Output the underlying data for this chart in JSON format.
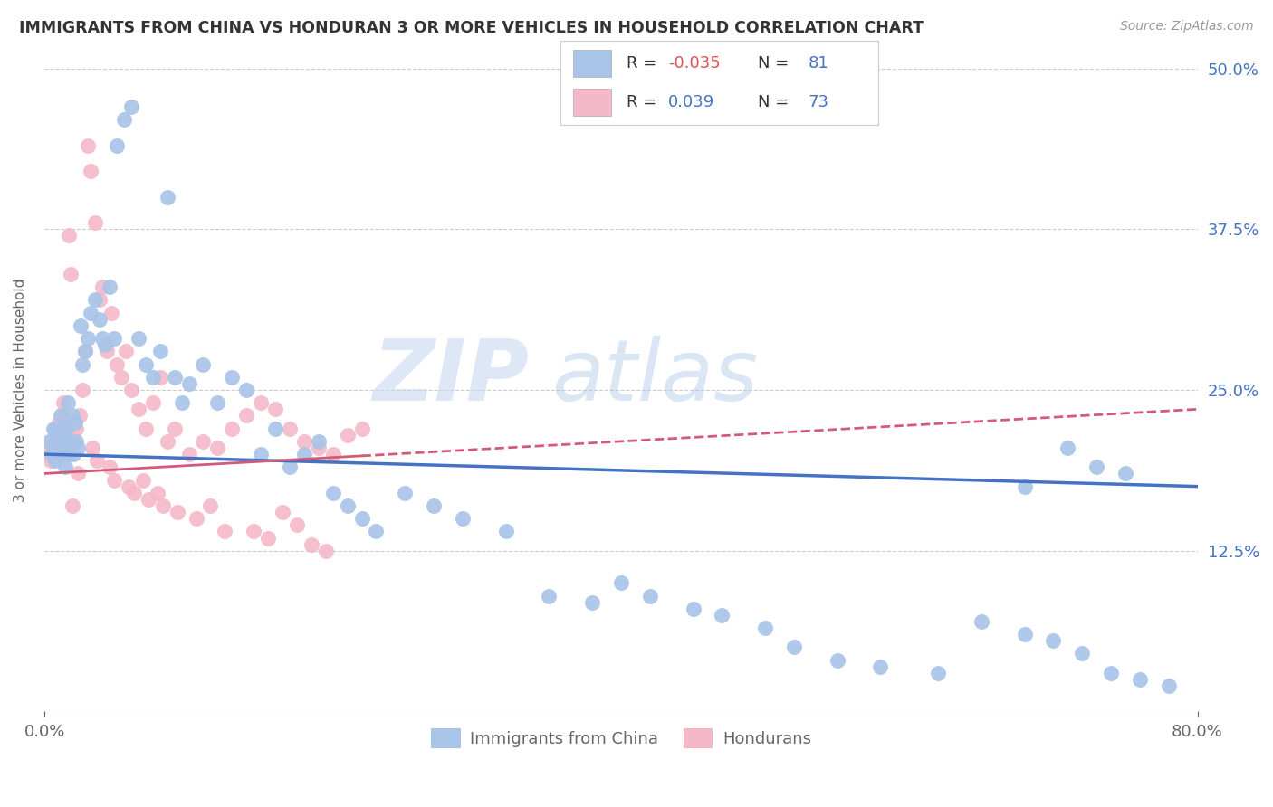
{
  "title": "IMMIGRANTS FROM CHINA VS HONDURAN 3 OR MORE VEHICLES IN HOUSEHOLD CORRELATION CHART",
  "source": "Source: ZipAtlas.com",
  "ylabel": "3 or more Vehicles in Household",
  "legend_china_R": "-0.035",
  "legend_china_N": "81",
  "legend_honduran_R": "0.039",
  "legend_honduran_N": "73",
  "color_china": "#a8c4e8",
  "color_honduran": "#f5b8c8",
  "color_china_line": "#4472c4",
  "color_honduran_line": "#d45a7a",
  "background_color": "#ffffff",
  "watermark_zip": "ZIP",
  "watermark_atlas": "atlas",
  "ytick_vals": [
    0,
    12.5,
    25.0,
    37.5,
    50.0
  ],
  "ytick_labels": [
    "",
    "12.5%",
    "25.0%",
    "37.5%",
    "50.0%"
  ],
  "china_x": [
    0.3,
    0.5,
    0.6,
    0.7,
    0.8,
    0.9,
    1.0,
    1.1,
    1.2,
    1.3,
    1.4,
    1.5,
    1.6,
    1.7,
    1.8,
    1.9,
    2.0,
    2.1,
    2.2,
    2.3,
    2.5,
    2.6,
    2.8,
    3.0,
    3.2,
    3.5,
    3.8,
    4.0,
    4.2,
    4.5,
    4.8,
    5.0,
    5.5,
    6.0,
    6.5,
    7.0,
    7.5,
    8.0,
    8.5,
    9.0,
    9.5,
    10.0,
    11.0,
    12.0,
    13.0,
    14.0,
    15.0,
    16.0,
    17.0,
    18.0,
    19.0,
    20.0,
    21.0,
    22.0,
    23.0,
    25.0,
    27.0,
    29.0,
    32.0,
    35.0,
    38.0,
    40.0,
    42.0,
    45.0,
    47.0,
    50.0,
    52.0,
    55.0,
    58.0,
    62.0,
    65.0,
    68.0,
    70.0,
    72.0,
    74.0,
    76.0,
    78.0,
    68.0,
    71.0,
    73.0,
    75.0
  ],
  "china_y": [
    21.0,
    20.0,
    22.0,
    19.5,
    21.5,
    20.5,
    22.0,
    23.0,
    21.0,
    20.0,
    19.0,
    22.0,
    24.0,
    20.0,
    21.0,
    23.0,
    20.0,
    22.5,
    21.0,
    20.5,
    30.0,
    27.0,
    28.0,
    29.0,
    31.0,
    32.0,
    30.5,
    29.0,
    28.5,
    33.0,
    29.0,
    44.0,
    46.0,
    47.0,
    29.0,
    27.0,
    26.0,
    28.0,
    40.0,
    26.0,
    24.0,
    25.5,
    27.0,
    24.0,
    26.0,
    25.0,
    20.0,
    22.0,
    19.0,
    20.0,
    21.0,
    17.0,
    16.0,
    15.0,
    14.0,
    17.0,
    16.0,
    15.0,
    14.0,
    9.0,
    8.5,
    10.0,
    9.0,
    8.0,
    7.5,
    6.5,
    5.0,
    4.0,
    3.5,
    3.0,
    7.0,
    6.0,
    5.5,
    4.5,
    3.0,
    2.5,
    2.0,
    17.5,
    20.5,
    19.0,
    18.5
  ],
  "honduran_x": [
    0.2,
    0.4,
    0.5,
    0.6,
    0.7,
    0.8,
    0.9,
    1.0,
    1.1,
    1.2,
    1.3,
    1.4,
    1.5,
    1.6,
    1.7,
    1.8,
    2.0,
    2.2,
    2.4,
    2.6,
    2.8,
    3.0,
    3.2,
    3.5,
    3.8,
    4.0,
    4.3,
    4.6,
    5.0,
    5.3,
    5.6,
    6.0,
    6.5,
    7.0,
    7.5,
    8.0,
    8.5,
    9.0,
    10.0,
    11.0,
    12.0,
    13.0,
    14.0,
    15.0,
    16.0,
    17.0,
    18.0,
    19.0,
    20.0,
    21.0,
    22.0,
    10.5,
    11.5,
    12.5,
    15.5,
    16.5,
    17.5,
    18.5,
    19.5,
    14.5,
    8.2,
    9.2,
    6.2,
    7.2,
    4.8,
    5.8,
    3.6,
    2.3,
    1.9,
    3.3,
    4.5,
    6.8,
    7.8
  ],
  "honduran_y": [
    20.0,
    19.5,
    21.0,
    20.5,
    22.0,
    21.5,
    20.0,
    22.5,
    21.0,
    23.0,
    24.0,
    20.0,
    22.0,
    21.5,
    37.0,
    34.0,
    21.0,
    22.0,
    23.0,
    25.0,
    28.0,
    44.0,
    42.0,
    38.0,
    32.0,
    33.0,
    28.0,
    31.0,
    27.0,
    26.0,
    28.0,
    25.0,
    23.5,
    22.0,
    24.0,
    26.0,
    21.0,
    22.0,
    20.0,
    21.0,
    20.5,
    22.0,
    23.0,
    24.0,
    23.5,
    22.0,
    21.0,
    20.5,
    20.0,
    21.5,
    22.0,
    15.0,
    16.0,
    14.0,
    13.5,
    15.5,
    14.5,
    13.0,
    12.5,
    14.0,
    16.0,
    15.5,
    17.0,
    16.5,
    18.0,
    17.5,
    19.5,
    18.5,
    16.0,
    20.5,
    19.0,
    18.0,
    17.0
  ]
}
